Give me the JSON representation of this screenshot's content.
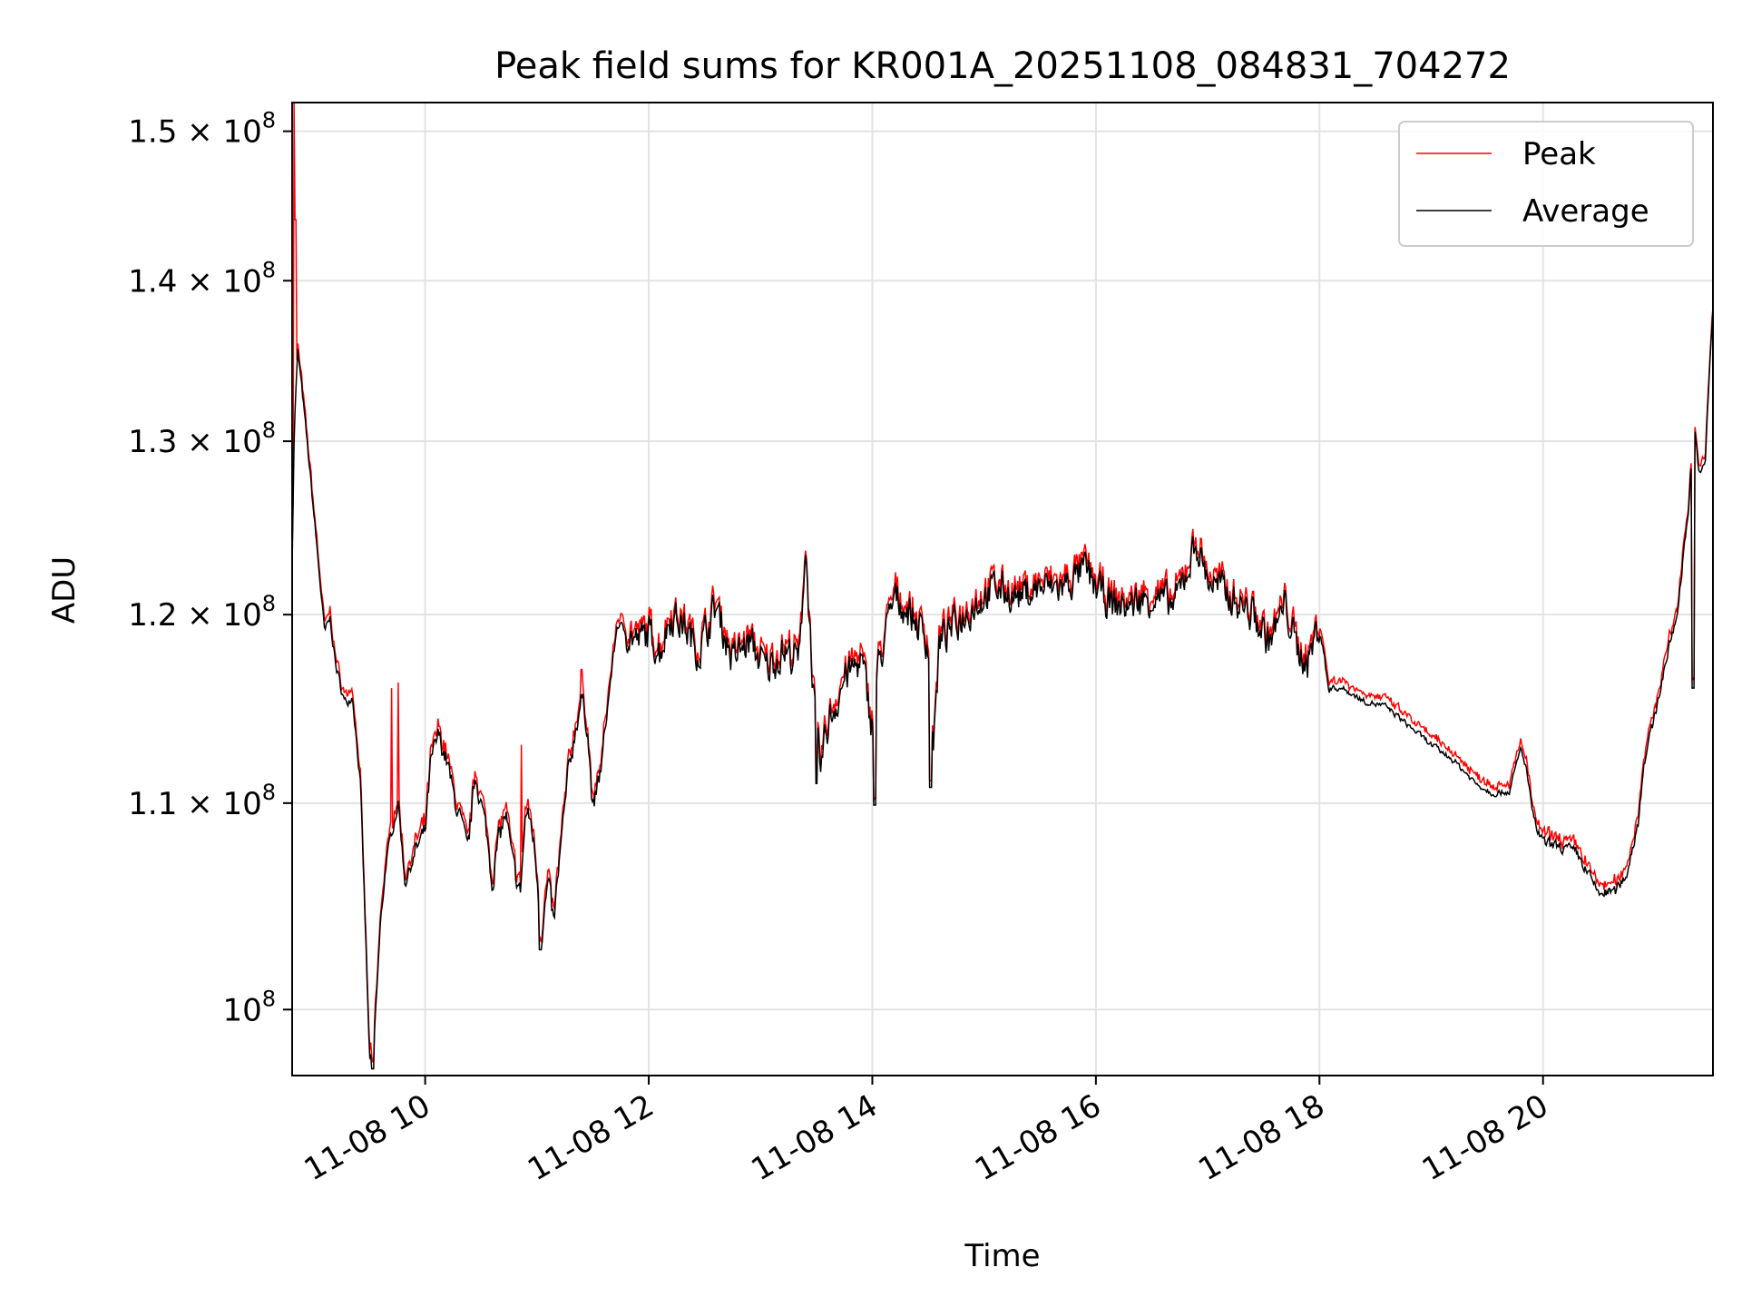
{
  "chart_data": {
    "type": "line",
    "title": "Peak field sums for KR001A_20251108_084831_704272",
    "xlabel": "Time",
    "ylabel": "ADU",
    "yscale": "log",
    "ylim": [
      97000000,
      152000000
    ],
    "xlim_hours": [
      8.81,
      21.52
    ],
    "grid": true,
    "legend_position": "upper right",
    "x_ticks": [
      {
        "hour": 10,
        "label": "11-08 10"
      },
      {
        "hour": 12,
        "label": "11-08 12"
      },
      {
        "hour": 14,
        "label": "11-08 14"
      },
      {
        "hour": 16,
        "label": "11-08 16"
      },
      {
        "hour": 18,
        "label": "11-08 18"
      },
      {
        "hour": 20,
        "label": "11-08 20"
      }
    ],
    "y_ticks": [
      {
        "value": 100000000,
        "base": "10",
        "exp": "8",
        "mantissa": ""
      },
      {
        "value": 110000000,
        "base": "1.1 × 10",
        "exp": "8",
        "mantissa": "1.1"
      },
      {
        "value": 120000000,
        "base": "1.2 × 10",
        "exp": "8",
        "mantissa": "1.2"
      },
      {
        "value": 130000000,
        "base": "1.3 × 10",
        "exp": "8",
        "mantissa": "1.3"
      },
      {
        "value": 140000000,
        "base": "1.4 × 10",
        "exp": "8",
        "mantissa": "1.4"
      },
      {
        "value": 150000000,
        "base": "1.5 × 10",
        "exp": "8",
        "mantissa": "1.5"
      }
    ],
    "series": [
      {
        "name": "Peak",
        "color": "#ff0000"
      },
      {
        "name": "Average",
        "color": "#000000"
      }
    ],
    "anchor_points": [
      [
        8.81,
        123.0
      ],
      [
        8.83,
        131.0
      ],
      [
        8.86,
        135.5
      ],
      [
        8.9,
        133.0
      ],
      [
        8.95,
        129.5
      ],
      [
        9.0,
        126.0
      ],
      [
        9.05,
        122.5
      ],
      [
        9.1,
        119.0
      ],
      [
        9.15,
        119.8
      ],
      [
        9.2,
        117.2
      ],
      [
        9.28,
        115.2
      ],
      [
        9.35,
        115.6
      ],
      [
        9.42,
        111.0
      ],
      [
        9.47,
        103.0
      ],
      [
        9.5,
        98.0
      ],
      [
        9.53,
        97.3
      ],
      [
        9.6,
        104.0
      ],
      [
        9.65,
        107.0
      ],
      [
        9.7,
        108.5
      ],
      [
        9.76,
        110.0
      ],
      [
        9.82,
        106.0
      ],
      [
        9.88,
        107.0
      ],
      [
        9.93,
        107.8
      ],
      [
        10.0,
        108.5
      ],
      [
        10.05,
        112.0
      ],
      [
        10.12,
        113.5
      ],
      [
        10.2,
        112.0
      ],
      [
        10.25,
        110.5
      ],
      [
        10.32,
        109.0
      ],
      [
        10.38,
        107.5
      ],
      [
        10.45,
        111.5
      ],
      [
        10.5,
        110.0
      ],
      [
        10.55,
        108.5
      ],
      [
        10.6,
        106.0
      ],
      [
        10.65,
        108.0
      ],
      [
        10.72,
        109.5
      ],
      [
        10.78,
        107.0
      ],
      [
        10.85,
        105.5
      ],
      [
        10.9,
        109.5
      ],
      [
        10.95,
        109.0
      ],
      [
        11.0,
        106.5
      ],
      [
        11.04,
        103.5
      ],
      [
        11.1,
        106.0
      ],
      [
        11.15,
        104.0
      ],
      [
        11.2,
        107.0
      ],
      [
        11.28,
        111.5
      ],
      [
        11.35,
        114.0
      ],
      [
        11.4,
        115.5
      ],
      [
        11.45,
        114.0
      ],
      [
        11.5,
        109.5
      ],
      [
        11.58,
        112.0
      ],
      [
        11.65,
        116.0
      ],
      [
        11.72,
        119.5
      ],
      [
        11.8,
        119.0
      ],
      [
        11.9,
        118.5
      ],
      [
        12.0,
        119.0
      ],
      [
        12.1,
        118.0
      ],
      [
        12.2,
        120.0
      ],
      [
        12.3,
        119.5
      ],
      [
        12.45,
        118.0
      ],
      [
        12.6,
        120.5
      ],
      [
        12.75,
        117.5
      ],
      [
        12.9,
        118.5
      ],
      [
        13.05,
        117.0
      ],
      [
        13.2,
        118.0
      ],
      [
        13.35,
        117.5
      ],
      [
        13.4,
        124.0
      ],
      [
        13.48,
        115.0
      ],
      [
        13.53,
        111.5
      ],
      [
        13.6,
        114.0
      ],
      [
        13.75,
        116.5
      ],
      [
        13.9,
        117.5
      ],
      [
        14.0,
        114.0
      ],
      [
        14.05,
        117.0
      ],
      [
        14.2,
        121.0
      ],
      [
        14.35,
        120.0
      ],
      [
        14.5,
        118.5
      ],
      [
        14.55,
        113.0
      ],
      [
        14.6,
        118.5
      ],
      [
        14.75,
        119.5
      ],
      [
        14.9,
        120.5
      ],
      [
        15.1,
        121.5
      ],
      [
        15.3,
        121.0
      ],
      [
        15.5,
        121.5
      ],
      [
        15.7,
        121.5
      ],
      [
        15.9,
        122.5
      ],
      [
        16.0,
        121.5
      ],
      [
        16.15,
        120.5
      ],
      [
        16.3,
        120.5
      ],
      [
        16.5,
        121.0
      ],
      [
        16.7,
        120.5
      ],
      [
        16.9,
        124.0
      ],
      [
        17.0,
        122.0
      ],
      [
        17.2,
        121.0
      ],
      [
        17.4,
        120.0
      ],
      [
        17.55,
        118.5
      ],
      [
        17.7,
        120.5
      ],
      [
        17.8,
        118.0
      ],
      [
        17.9,
        117.5
      ],
      [
        18.0,
        119.5
      ],
      [
        18.08,
        116.0
      ],
      [
        18.2,
        116.0
      ],
      [
        18.4,
        115.3
      ],
      [
        18.6,
        115.0
      ],
      [
        18.8,
        114.0
      ],
      [
        19.0,
        113.0
      ],
      [
        19.2,
        112.2
      ],
      [
        19.4,
        111.0
      ],
      [
        19.55,
        110.5
      ],
      [
        19.7,
        110.6
      ],
      [
        19.8,
        112.8
      ],
      [
        19.85,
        111.8
      ],
      [
        19.92,
        109.0
      ],
      [
        20.0,
        108.0
      ],
      [
        20.15,
        107.8
      ],
      [
        20.3,
        107.5
      ],
      [
        20.4,
        106.5
      ],
      [
        20.5,
        105.5
      ],
      [
        20.65,
        105.6
      ],
      [
        20.75,
        106.5
      ],
      [
        20.85,
        109.0
      ],
      [
        20.9,
        112.0
      ],
      [
        21.0,
        114.5
      ],
      [
        21.1,
        117.5
      ],
      [
        21.2,
        120.0
      ],
      [
        21.3,
        126.0
      ],
      [
        21.35,
        131.0
      ],
      [
        21.4,
        128.0
      ],
      [
        21.45,
        128.5
      ],
      [
        21.5,
        136.0
      ],
      [
        21.52,
        138.0
      ]
    ],
    "average_dips": [
      [
        13.5,
        111.0
      ],
      [
        14.02,
        109.9
      ],
      [
        14.52,
        110.8
      ],
      [
        21.34,
        116.0
      ],
      [
        11.03,
        102.8
      ],
      [
        9.53,
        97.3
      ]
    ],
    "peak_spikes": [
      [
        8.825,
        152.0
      ],
      [
        8.84,
        144.0
      ],
      [
        9.7,
        116.0
      ],
      [
        9.76,
        116.3
      ],
      [
        10.86,
        113.0
      ],
      [
        11.4,
        117.0
      ]
    ]
  }
}
